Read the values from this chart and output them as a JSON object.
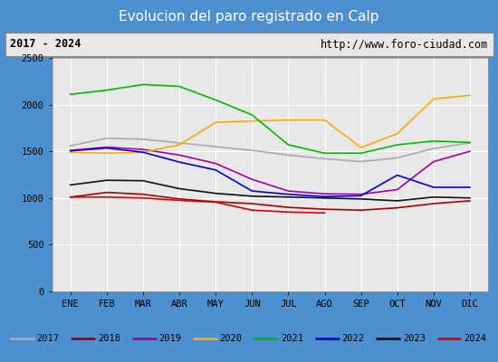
{
  "title": "Evolucion del paro registrado en Calp",
  "subtitle_left": "2017 - 2024",
  "subtitle_right": "http://www.foro-ciudad.com",
  "xlabel_months": [
    "ENE",
    "FEB",
    "MAR",
    "ABR",
    "MAY",
    "JUN",
    "JUL",
    "AGO",
    "SEP",
    "OCT",
    "NOV",
    "DIC"
  ],
  "ylim": [
    0,
    2500
  ],
  "yticks": [
    0,
    500,
    1000,
    1500,
    2000,
    2500
  ],
  "series": {
    "2017": {
      "color": "#aaaaaa",
      "data": [
        1560,
        1640,
        1630,
        1590,
        1550,
        1510,
        1460,
        1420,
        1390,
        1430,
        1530,
        1590
      ]
    },
    "2018": {
      "color": "#aa0000",
      "data": [
        1010,
        1060,
        1040,
        990,
        960,
        940,
        900,
        880,
        870,
        895,
        940,
        970
      ]
    },
    "2019": {
      "color": "#aa00aa",
      "data": [
        1510,
        1545,
        1520,
        1460,
        1370,
        1200,
        1075,
        1045,
        1040,
        1090,
        1390,
        1500
      ]
    },
    "2020": {
      "color": "#ffaa00",
      "data": [
        1490,
        1480,
        1490,
        1570,
        1810,
        1825,
        1835,
        1835,
        1540,
        1690,
        2060,
        2100
      ]
    },
    "2021": {
      "color": "#00bb00",
      "data": [
        2110,
        2155,
        2215,
        2195,
        2050,
        1890,
        1570,
        1480,
        1480,
        1570,
        1610,
        1595
      ]
    },
    "2022": {
      "color": "#0000dd",
      "data": [
        1505,
        1535,
        1490,
        1385,
        1300,
        1075,
        1040,
        1015,
        1025,
        1245,
        1115,
        1115
      ]
    },
    "2023": {
      "color": "#111111",
      "data": [
        1140,
        1190,
        1185,
        1100,
        1050,
        1020,
        1010,
        1000,
        990,
        970,
        1010,
        1000
      ]
    },
    "2024": {
      "color": "#dd0000",
      "data": [
        1010,
        1010,
        1000,
        975,
        955,
        870,
        850,
        840,
        null,
        null,
        null,
        null
      ]
    }
  },
  "title_bg_color": "#4d90d0",
  "title_text_color": "#ffffff",
  "subtitle_bg_color": "#e8e8e8",
  "plot_bg_color": "#e8e8e8",
  "grid_color": "#ffffff",
  "fig_bg_color": "#4d90d0"
}
